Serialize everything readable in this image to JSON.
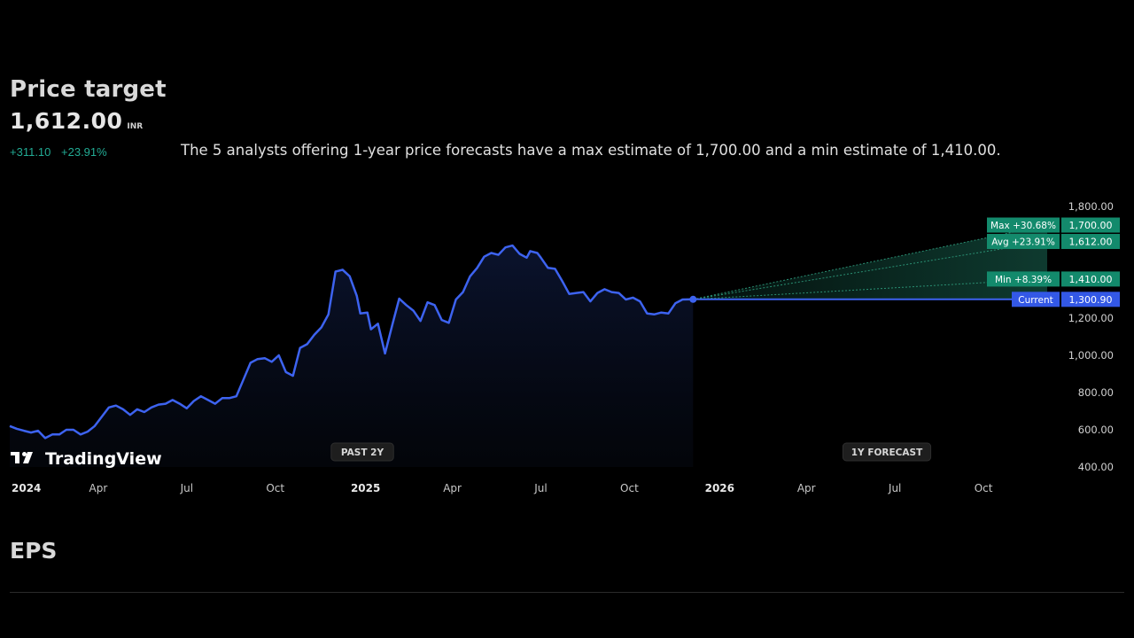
{
  "header": {
    "title": "Price target",
    "price": "1,612.00",
    "currency": "INR",
    "change_abs": "+311.10",
    "change_pct": "+23.91%",
    "summary": "The 5 analysts offering 1-year price forecasts have a max estimate of 1,700.00 and a min estimate of 1,410.00."
  },
  "branding": {
    "logo_text": "TradingView"
  },
  "chart_data": {
    "type": "line",
    "title": "Price target",
    "x_range": [
      2024.0,
      2026.95
    ],
    "ylim": [
      400,
      1800
    ],
    "y_ticks": [
      400,
      600,
      800,
      1000,
      1200,
      1800
    ],
    "y_tick_labels": [
      "400.00",
      "600.00",
      "800.00",
      "1,000.00",
      "1,200.00",
      "1,800.00"
    ],
    "x_ticks": [
      {
        "x": 2024.0,
        "label": "2024",
        "bold": true
      },
      {
        "x": 2024.25,
        "label": "Apr",
        "bold": false
      },
      {
        "x": 2024.5,
        "label": "Jul",
        "bold": false
      },
      {
        "x": 2024.75,
        "label": "Oct",
        "bold": false
      },
      {
        "x": 2025.0,
        "label": "2025",
        "bold": true
      },
      {
        "x": 2025.25,
        "label": "Apr",
        "bold": false
      },
      {
        "x": 2025.5,
        "label": "Jul",
        "bold": false
      },
      {
        "x": 2025.75,
        "label": "Oct",
        "bold": false
      },
      {
        "x": 2026.0,
        "label": "2026",
        "bold": true
      },
      {
        "x": 2026.25,
        "label": "Apr",
        "bold": false
      },
      {
        "x": 2026.5,
        "label": "Jul",
        "bold": false
      },
      {
        "x": 2026.75,
        "label": "Oct",
        "bold": false
      }
    ],
    "series": [
      {
        "name": "Past price",
        "x": [
          2024.0,
          2024.02,
          2024.04,
          2024.06,
          2024.08,
          2024.1,
          2024.12,
          2024.14,
          2024.16,
          2024.18,
          2024.2,
          2024.22,
          2024.24,
          2024.26,
          2024.28,
          2024.3,
          2024.32,
          2024.34,
          2024.36,
          2024.38,
          2024.4,
          2024.42,
          2024.44,
          2024.46,
          2024.48,
          2024.5,
          2024.52,
          2024.54,
          2024.56,
          2024.58,
          2024.6,
          2024.62,
          2024.64,
          2024.66,
          2024.68,
          2024.7,
          2024.72,
          2024.74,
          2024.76,
          2024.78,
          2024.8,
          2024.82,
          2024.84,
          2024.86,
          2024.88,
          2024.9,
          2024.92,
          2024.94,
          2024.96,
          2024.98,
          2024.99,
          2025.01,
          2025.02,
          2025.04,
          2025.06,
          2025.08,
          2025.1,
          2025.12,
          2025.14,
          2025.16,
          2025.18,
          2025.2,
          2025.22,
          2025.24,
          2025.26,
          2025.28,
          2025.3,
          2025.32,
          2025.34,
          2025.36,
          2025.38,
          2025.4,
          2025.42,
          2025.44,
          2025.46,
          2025.47,
          2025.49,
          2025.5,
          2025.52,
          2025.54,
          2025.56,
          2025.58,
          2025.6,
          2025.62,
          2025.64,
          2025.66,
          2025.68,
          2025.7,
          2025.72,
          2025.74,
          2025.76,
          2025.78,
          2025.8,
          2025.82,
          2025.84,
          2025.86,
          2025.88,
          2025.89,
          2025.9,
          2025.93
        ],
        "y": [
          620,
          605,
          595,
          585,
          595,
          555,
          575,
          575,
          600,
          600,
          575,
          590,
          620,
          670,
          720,
          730,
          710,
          680,
          710,
          695,
          720,
          735,
          740,
          760,
          740,
          715,
          755,
          780,
          760,
          740,
          770,
          770,
          780,
          870,
          960,
          980,
          985,
          965,
          1000,
          910,
          890,
          1040,
          1060,
          1110,
          1150,
          1220,
          1450,
          1460,
          1425,
          1320,
          1225,
          1230,
          1140,
          1170,
          1010,
          1160,
          1305,
          1270,
          1240,
          1185,
          1285,
          1270,
          1190,
          1175,
          1300,
          1340,
          1425,
          1470,
          1530,
          1550,
          1540,
          1580,
          1590,
          1545,
          1525,
          1560,
          1550,
          1525,
          1470,
          1465,
          1400,
          1330,
          1335,
          1340,
          1290,
          1335,
          1355,
          1340,
          1335,
          1300,
          1310,
          1290,
          1225,
          1220,
          1230,
          1225,
          1280,
          1290,
          1300,
          1300.9
        ]
      },
      {
        "name": "Forecast",
        "start": {
          "x": 2025.93,
          "y": 1300.9
        },
        "end_x": 2026.93,
        "max": 1700.0,
        "avg": 1612.0,
        "min": 1410.0,
        "current": 1300.9
      }
    ],
    "labels": [
      {
        "name": "Max",
        "pct": "Max +30.68%",
        "value": "1,700.00",
        "y": 1700
      },
      {
        "name": "Avg",
        "pct": "Avg +23.91%",
        "value": "1,612.00",
        "y": 1612
      },
      {
        "name": "Min",
        "pct": "Min +8.39%",
        "value": "1,410.00",
        "y": 1410
      },
      {
        "name": "Current",
        "pct": "Current",
        "value": "1,300.90",
        "y": 1300.9
      }
    ],
    "period_badges": {
      "past": "PAST 2Y",
      "forecast": "1Y FORECAST"
    }
  },
  "colors": {
    "line": "#3d63f0",
    "forecast_fill": "#1a6a56",
    "badge_green": "#138a6c",
    "badge_blue": "#3358e6",
    "positive": "#22ab94"
  },
  "next_section": {
    "title": "EPS"
  }
}
